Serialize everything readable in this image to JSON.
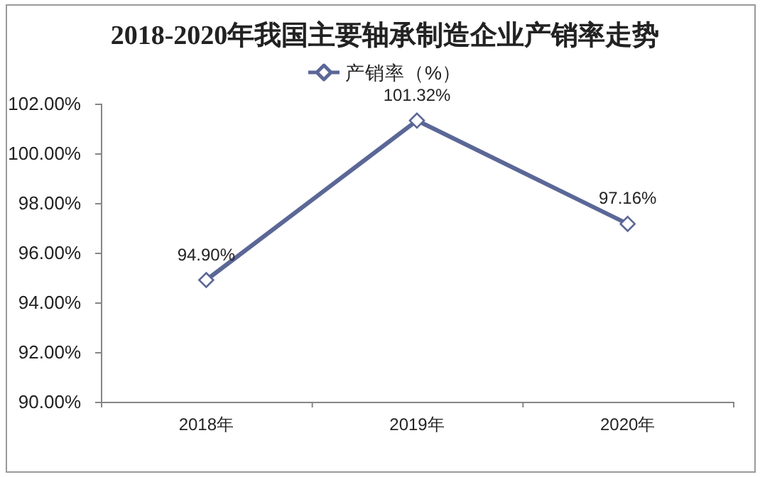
{
  "chart_data": {
    "type": "line",
    "title": "2018-2020年我国主要轴承制造企业产销率走势",
    "categories": [
      "2018年",
      "2019年",
      "2020年"
    ],
    "series": [
      {
        "name": "产销率（%）",
        "color": "#5b6796",
        "values": [
          94.9,
          101.32,
          97.16
        ],
        "value_labels": [
          "94.90%",
          "101.32%",
          "97.16%"
        ]
      }
    ],
    "ylim": [
      90,
      102
    ],
    "yticks": [
      {
        "value": 90,
        "label": "90.00%"
      },
      {
        "value": 92,
        "label": "92.00%"
      },
      {
        "value": 94,
        "label": "94.00%"
      },
      {
        "value": 96,
        "label": "96.00%"
      },
      {
        "value": 98,
        "label": "98.00%"
      },
      {
        "value": 100,
        "label": "100.00%"
      },
      {
        "value": 102,
        "label": "102.00%"
      }
    ],
    "legend": "top",
    "marker": "diamond",
    "line_style": "solid",
    "grid": false
  }
}
